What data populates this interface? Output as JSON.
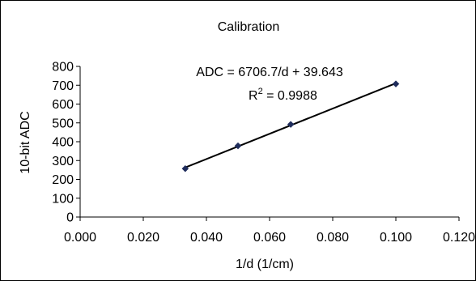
{
  "chart_data": {
    "type": "scatter",
    "title": "Calibration",
    "xlabel": "1/d (1/cm)",
    "ylabel": "10-bit ADC",
    "xlim": [
      0.0,
      0.12
    ],
    "ylim": [
      0,
      800
    ],
    "x_ticks": [
      "0.000",
      "0.020",
      "0.040",
      "0.060",
      "0.080",
      "0.100",
      "0.120"
    ],
    "y_ticks": [
      "0",
      "100",
      "200",
      "300",
      "400",
      "500",
      "600",
      "700",
      "800"
    ],
    "grid": false,
    "legend": "none",
    "series": [
      {
        "points": [
          {
            "x": 0.0333,
            "y": 257
          },
          {
            "x": 0.05,
            "y": 378
          },
          {
            "x": 0.0667,
            "y": 492
          },
          {
            "x": 0.1,
            "y": 707
          }
        ],
        "marker": "diamond",
        "color": "#1f2d5c"
      }
    ],
    "trendline": {
      "type": "linear",
      "slope": 6706.7,
      "intercept": 39.643,
      "x_range": [
        0.0333,
        0.1
      ],
      "color": "#000000"
    },
    "annotations": {
      "equation": "ADC = 6706.7/d + 39.643",
      "r2_label": "R",
      "r2_exponent": "2",
      "r2_value": " = 0.9988"
    }
  }
}
